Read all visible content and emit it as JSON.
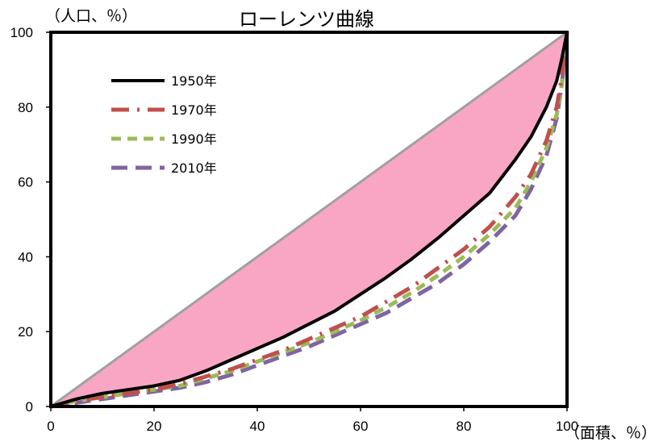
{
  "chart_data": {
    "type": "line",
    "title": "ローレンツ曲線",
    "ylabel": "（人口、％）",
    "xlabel": "（面積、％）",
    "xlim": [
      0,
      100
    ],
    "ylim": [
      0,
      100
    ],
    "x_ticks": [
      "0",
      "20",
      "40",
      "60",
      "80",
      "100"
    ],
    "y_ticks": [
      "0",
      "20",
      "40",
      "60",
      "80",
      "100"
    ],
    "grid": false,
    "legend_position": "top-left",
    "equality_line": {
      "x": [
        0,
        100
      ],
      "y": [
        0,
        100
      ],
      "color": "#a0a0a0"
    },
    "shaded_area": {
      "between": [
        "equality_line",
        "1950年"
      ],
      "color": "#f9a6c4"
    },
    "series": [
      {
        "name": "1950年",
        "color": "#000000",
        "dash": "solid",
        "x": [
          0,
          5,
          10,
          15,
          20,
          25,
          30,
          35,
          40,
          45,
          50,
          55,
          60,
          65,
          70,
          75,
          80,
          85,
          90,
          93,
          96,
          98,
          99,
          100
        ],
        "y": [
          0,
          2,
          3.5,
          4.5,
          5.5,
          7,
          9.5,
          12.5,
          15.5,
          18.5,
          22,
          25.5,
          30,
          34.5,
          39.5,
          45,
          51,
          57,
          66,
          72,
          80,
          87,
          93,
          100
        ]
      },
      {
        "name": "1970年",
        "color": "#c0504d",
        "dash": "dashdot",
        "x": [
          0,
          5,
          10,
          15,
          20,
          25,
          30,
          35,
          40,
          45,
          50,
          55,
          60,
          65,
          70,
          75,
          80,
          85,
          90,
          93,
          96,
          98,
          99,
          100
        ],
        "y": [
          0,
          1.5,
          2.5,
          3.5,
          4.5,
          6,
          8,
          10,
          12.5,
          15,
          18,
          21,
          24,
          28,
          32,
          37,
          42,
          48,
          56,
          62,
          71,
          80,
          88,
          100
        ]
      },
      {
        "name": "1990年",
        "color": "#9bbb59",
        "dash": "dash",
        "x": [
          0,
          5,
          10,
          15,
          20,
          25,
          30,
          35,
          40,
          45,
          50,
          55,
          60,
          65,
          70,
          75,
          80,
          85,
          90,
          93,
          96,
          98,
          99,
          100
        ],
        "y": [
          0,
          1.5,
          2.5,
          3.5,
          4.5,
          5.5,
          7.5,
          9.5,
          12,
          14.5,
          17,
          20,
          23,
          26.5,
          30.5,
          35,
          40,
          46,
          53,
          60,
          69,
          78,
          86,
          100
        ]
      },
      {
        "name": "2010年",
        "color": "#8064a2",
        "dash": "longdash",
        "x": [
          0,
          5,
          10,
          15,
          20,
          25,
          30,
          35,
          40,
          45,
          50,
          55,
          60,
          65,
          70,
          75,
          80,
          85,
          90,
          93,
          96,
          98,
          99,
          100
        ],
        "y": [
          0,
          1,
          2,
          3,
          4,
          5,
          6.5,
          8.5,
          11,
          13.5,
          16,
          19,
          22,
          25,
          29,
          33,
          38,
          44,
          51,
          58,
          67,
          77,
          86,
          100
        ]
      }
    ]
  }
}
